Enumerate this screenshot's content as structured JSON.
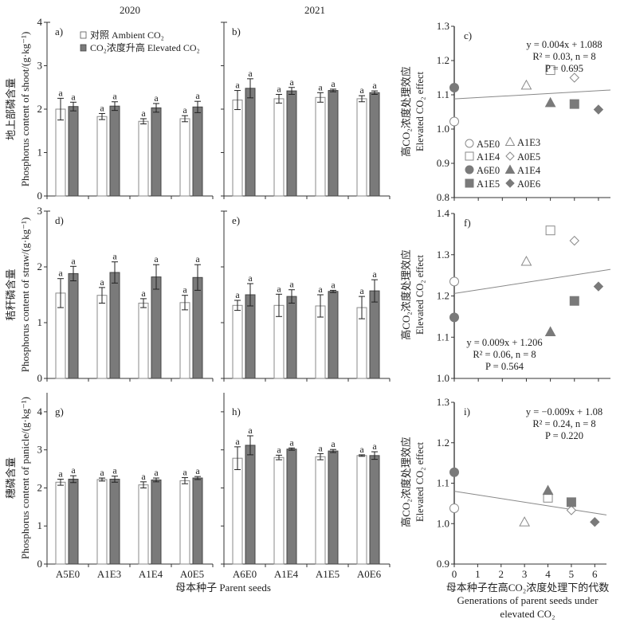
{
  "figure": {
    "year_labels": [
      "2020",
      "2021"
    ],
    "x_group_label": "母本种子 Parent seeds",
    "legend": {
      "ambient": "对照 Ambient CO₂",
      "elevated": "CO₂浓度升高 Elevated CO₂"
    },
    "row_ylabels": [
      {
        "cn": "地上部磷含量",
        "en": "Phosphorus content of shoot/(g·kg⁻¹)"
      },
      {
        "cn": "秸秆磷含量",
        "en": "Phosphorus  content of straw/(g·kg⁻¹)"
      },
      {
        "cn": "穗磷含量",
        "en": "Phosphorus content of panicle/(g·kg⁻¹)"
      }
    ],
    "effect_ylabel": {
      "cn": "高CO₂浓度处理效应",
      "en": "Elevated CO₂ effect"
    },
    "effect_xlabel": {
      "cn": "母本种子在高CO₂浓度处理下的代数",
      "en1": "Generations of parent seeds under",
      "en2": "elevated CO₂"
    },
    "scatter_legend": [
      {
        "label": "A5E0",
        "marker": "circle",
        "filled": false
      },
      {
        "label": "A1E3",
        "marker": "triangle",
        "filled": false
      },
      {
        "label": "A1E4",
        "marker": "square",
        "filled": false
      },
      {
        "label": "A0E5",
        "marker": "diamond",
        "filled": false
      },
      {
        "label": "A6E0",
        "marker": "circle",
        "filled": true
      },
      {
        "label": "A1E4",
        "marker": "triangle",
        "filled": true
      },
      {
        "label": "A1E5",
        "marker": "square",
        "filled": true
      },
      {
        "label": "A0E6",
        "marker": "diamond",
        "filled": true
      }
    ],
    "colors": {
      "ambient_fill": "#ffffff",
      "elevated_fill": "#7a7a7a",
      "axis": "#333333",
      "scatter_gray": "#7a7a7a",
      "outline_gray": "#8a8a8a"
    }
  },
  "chart_data": [
    {
      "id": "a",
      "panel_label": "a)",
      "type": "bar",
      "year": "2020",
      "ylim": [
        0,
        4
      ],
      "yticks": [
        0,
        1,
        2,
        3,
        4
      ],
      "categories": [
        "A5E0",
        "A1E3",
        "A1E4",
        "A0E5"
      ],
      "series": [
        {
          "name": "Ambient CO₂",
          "values": [
            2.0,
            1.83,
            1.72,
            1.78
          ],
          "errors": [
            0.25,
            0.07,
            0.06,
            0.07
          ],
          "letters": [
            "a",
            "a",
            "a",
            "a"
          ]
        },
        {
          "name": "Elevated CO₂",
          "values": [
            2.06,
            2.07,
            2.03,
            2.05
          ],
          "errors": [
            0.1,
            0.1,
            0.1,
            0.13
          ],
          "letters": [
            "a",
            "a",
            "a",
            "a"
          ]
        }
      ]
    },
    {
      "id": "b",
      "panel_label": "b)",
      "type": "bar",
      "year": "2021",
      "ylim": [
        0,
        4
      ],
      "yticks": [
        0,
        1,
        2,
        3,
        4
      ],
      "categories": [
        "A6E0",
        "A1E4",
        "A1E5",
        "A0E6"
      ],
      "series": [
        {
          "name": "Ambient CO₂",
          "values": [
            2.21,
            2.24,
            2.27,
            2.24
          ],
          "errors": [
            0.22,
            0.1,
            0.11,
            0.07
          ],
          "letters": [
            "a",
            "a",
            "a",
            "a"
          ]
        },
        {
          "name": "Elevated CO₂",
          "values": [
            2.48,
            2.42,
            2.43,
            2.38
          ],
          "errors": [
            0.22,
            0.08,
            0.03,
            0.04
          ],
          "letters": [
            "a",
            "a",
            "a",
            "a"
          ]
        }
      ]
    },
    {
      "id": "c",
      "panel_label": "c)",
      "type": "scatter",
      "xlim": [
        0,
        6.5
      ],
      "ylim": [
        0.8,
        1.3
      ],
      "yticks": [
        0.8,
        0.9,
        1.0,
        1.1,
        1.2,
        1.3
      ],
      "xticks": [
        0,
        1,
        2,
        3,
        4,
        5,
        6
      ],
      "points": [
        {
          "label": "A5E0",
          "x": 0,
          "y": 1.022,
          "marker": "circle",
          "filled": false
        },
        {
          "label": "A6E0",
          "x": 0,
          "y": 1.121,
          "marker": "circle",
          "filled": true
        },
        {
          "label": "A1E3",
          "x": 3,
          "y": 1.128,
          "marker": "triangle",
          "filled": false
        },
        {
          "label": "A1E4",
          "x": 4,
          "y": 1.172,
          "marker": "square",
          "filled": false
        },
        {
          "label": "A1E4",
          "x": 4,
          "y": 1.077,
          "marker": "triangle",
          "filled": true
        },
        {
          "label": "A0E5",
          "x": 5,
          "y": 1.15,
          "marker": "diamond",
          "filled": false
        },
        {
          "label": "A1E5",
          "x": 5,
          "y": 1.073,
          "marker": "square",
          "filled": true
        },
        {
          "label": "A0E6",
          "x": 6,
          "y": 1.057,
          "marker": "diamond",
          "filled": true
        }
      ],
      "fit": {
        "slope": 0.004,
        "intercept": 1.088
      },
      "annotation": [
        "y = 0.004x + 1.088",
        "R² = 0.03, n = 8",
        "P = 0.695"
      ]
    },
    {
      "id": "d",
      "panel_label": "d)",
      "type": "bar",
      "year": "2020",
      "ylim": [
        0,
        3
      ],
      "yticks": [
        0,
        1,
        2,
        3
      ],
      "categories": [
        "A5E0",
        "A1E3",
        "A1E4",
        "A0E5"
      ],
      "series": [
        {
          "name": "Ambient CO₂",
          "values": [
            1.53,
            1.49,
            1.35,
            1.36
          ],
          "errors": [
            0.26,
            0.14,
            0.08,
            0.13
          ],
          "letters": [
            "a",
            "a",
            "a",
            "a"
          ]
        },
        {
          "name": "Elevated CO₂",
          "values": [
            1.88,
            1.9,
            1.82,
            1.81
          ],
          "errors": [
            0.13,
            0.19,
            0.22,
            0.23
          ],
          "letters": [
            "a",
            "a",
            "a",
            "a"
          ]
        }
      ]
    },
    {
      "id": "e",
      "panel_label": "e)",
      "type": "bar",
      "year": "2021",
      "ylim": [
        0,
        3
      ],
      "yticks": [
        0,
        1,
        2,
        3
      ],
      "categories": [
        "A6E0",
        "A1E4",
        "A1E5",
        "A0E6"
      ],
      "series": [
        {
          "name": "Ambient CO₂",
          "values": [
            1.31,
            1.31,
            1.3,
            1.27
          ],
          "errors": [
            0.09,
            0.2,
            0.2,
            0.2
          ],
          "letters": [
            "a",
            "a",
            "a",
            "a"
          ]
        },
        {
          "name": "Elevated CO₂",
          "values": [
            1.5,
            1.47,
            1.56,
            1.57
          ],
          "errors": [
            0.2,
            0.12,
            0.02,
            0.2
          ],
          "letters": [
            "a",
            "a",
            "a",
            "a"
          ]
        }
      ]
    },
    {
      "id": "f",
      "panel_label": "f)",
      "type": "scatter",
      "xlim": [
        0,
        6.5
      ],
      "ylim": [
        1.0,
        1.4
      ],
      "yticks": [
        1.0,
        1.1,
        1.2,
        1.3,
        1.4
      ],
      "xticks": [
        0,
        1,
        2,
        3,
        4,
        5,
        6
      ],
      "points": [
        {
          "label": "A5E0",
          "x": 0,
          "y": 1.235,
          "marker": "circle",
          "filled": false
        },
        {
          "label": "A6E0",
          "x": 0,
          "y": 1.148,
          "marker": "circle",
          "filled": true
        },
        {
          "label": "A1E3",
          "x": 3,
          "y": 1.284,
          "marker": "triangle",
          "filled": false
        },
        {
          "label": "A1E4",
          "x": 4,
          "y": 1.359,
          "marker": "square",
          "filled": false
        },
        {
          "label": "A1E4",
          "x": 4,
          "y": 1.113,
          "marker": "triangle",
          "filled": true
        },
        {
          "label": "A0E5",
          "x": 5,
          "y": 1.334,
          "marker": "diamond",
          "filled": false
        },
        {
          "label": "A1E5",
          "x": 5,
          "y": 1.188,
          "marker": "square",
          "filled": true
        },
        {
          "label": "A0E6",
          "x": 6,
          "y": 1.223,
          "marker": "diamond",
          "filled": true
        }
      ],
      "fit": {
        "slope": 0.009,
        "intercept": 1.206
      },
      "annotation": [
        "y = 0.009x + 1.206",
        "R² = 0.06, n = 8",
        "P = 0.564"
      ]
    },
    {
      "id": "g",
      "panel_label": "g)",
      "type": "bar",
      "year": "2020",
      "ylim": [
        0,
        4.5
      ],
      "yticks": [
        0,
        1,
        2,
        3,
        4
      ],
      "categories": [
        "A5E0",
        "A1E3",
        "A1E4",
        "A0E5"
      ],
      "series": [
        {
          "name": "Ambient CO₂",
          "values": [
            2.15,
            2.22,
            2.08,
            2.19
          ],
          "errors": [
            0.08,
            0.04,
            0.08,
            0.08
          ],
          "letters": [
            "a",
            "a",
            "a",
            "a"
          ]
        },
        {
          "name": "Elevated CO₂",
          "values": [
            2.23,
            2.23,
            2.21,
            2.26
          ],
          "errors": [
            0.09,
            0.08,
            0.05,
            0.04
          ],
          "letters": [
            "a",
            "a",
            "a",
            "a"
          ]
        }
      ]
    },
    {
      "id": "h",
      "panel_label": "h)",
      "type": "bar",
      "year": "2021",
      "ylim": [
        0,
        4.5
      ],
      "yticks": [
        0,
        1,
        2,
        3,
        4
      ],
      "categories": [
        "A6E0",
        "A1E4",
        "A1E5",
        "A0E6"
      ],
      "series": [
        {
          "name": "Ambient CO₂",
          "values": [
            2.78,
            2.8,
            2.82,
            2.85
          ],
          "errors": [
            0.3,
            0.06,
            0.08,
            0.02
          ],
          "letters": [
            "a",
            "a",
            "a",
            "a"
          ]
        },
        {
          "name": "Elevated CO₂",
          "values": [
            3.12,
            3.02,
            2.97,
            2.85
          ],
          "errors": [
            0.25,
            0.03,
            0.04,
            0.1
          ],
          "letters": [
            "a",
            "a",
            "a",
            "a"
          ]
        }
      ]
    },
    {
      "id": "i",
      "panel_label": "i)",
      "type": "scatter",
      "xlim": [
        0,
        6.5
      ],
      "ylim": [
        0.9,
        1.3
      ],
      "yticks": [
        0.9,
        1.0,
        1.1,
        1.2,
        1.3
      ],
      "xticks": [
        0,
        1,
        2,
        3,
        4,
        5,
        6
      ],
      "show_xtick_labels": true,
      "points": [
        {
          "label": "A5E0",
          "x": 0,
          "y": 1.038,
          "marker": "circle",
          "filled": false
        },
        {
          "label": "A6E0",
          "x": 0,
          "y": 1.127,
          "marker": "circle",
          "filled": true
        },
        {
          "label": "A1E3",
          "x": 3,
          "y": 1.004,
          "marker": "triangle",
          "filled": false
        },
        {
          "label": "A1E4",
          "x": 4,
          "y": 1.064,
          "marker": "square",
          "filled": false
        },
        {
          "label": "A1E4",
          "x": 4,
          "y": 1.082,
          "marker": "triangle",
          "filled": true
        },
        {
          "label": "A0E5",
          "x": 5,
          "y": 1.033,
          "marker": "diamond",
          "filled": false
        },
        {
          "label": "A1E5",
          "x": 5,
          "y": 1.053,
          "marker": "square",
          "filled": true
        },
        {
          "label": "A0E6",
          "x": 6,
          "y": 1.004,
          "marker": "diamond",
          "filled": true
        }
      ],
      "fit": {
        "slope": -0.009,
        "intercept": 1.08
      },
      "annotation": [
        "y = −0.009x + 1.08",
        "R² = 0.24, n = 8",
        "P = 0.220"
      ]
    }
  ]
}
